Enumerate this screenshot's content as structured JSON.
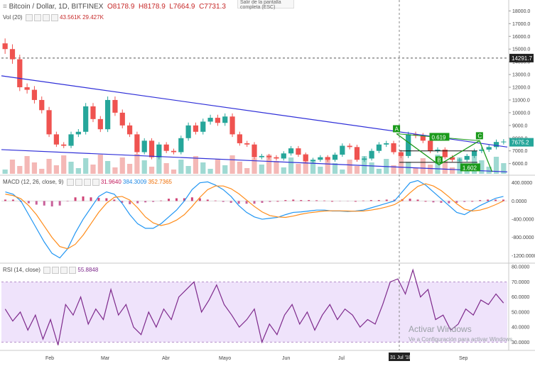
{
  "header": {
    "symbol": "Bitcoin / Dollar, 1D, BITFINEX",
    "o_label": "O",
    "o_value": "8178.9",
    "h_label": "H",
    "h_value": "8178.9",
    "l_label": "L",
    "l_value": "7664.9",
    "c_label": "C",
    "c_value": "7731.3",
    "vol_label": "Vol (20)",
    "vol_value": "43.561K",
    "vol_value2": "29.427K",
    "macd_label": "MACD (12, 26, close, 9)",
    "macd_v1": "31.9640",
    "macd_v2": "384.3009",
    "macd_v3": "352.7365",
    "rsi_label": "RSI (14, close)",
    "rsi_value": "55.8848"
  },
  "tooltip": {
    "line1": "Salir de la pantalla",
    "line2": "completa (ESC)"
  },
  "watermark": {
    "title": "Activar Windows",
    "subtitle": "Ve a Configuración para activar Windows."
  },
  "colors": {
    "up": "#26a69a",
    "down": "#ef5350",
    "trend": "#2f2fd8",
    "pattern": "#1a9a1a",
    "macd": "#2196f3",
    "signal": "#ff8c1a",
    "rsi": "#7e2a8c",
    "rsi_band": "#efe3fb"
  },
  "chart_data": [
    {
      "type": "candlestick",
      "panel": "price",
      "x": [
        "Feb",
        "Mar",
        "Abr",
        "Mayo",
        "Jun",
        "Jul",
        "31 Jul '18",
        "Sep"
      ],
      "close_series": [
        15000,
        14200,
        12000,
        11800,
        11000,
        10200,
        8300,
        7500,
        7400,
        8300,
        8500,
        10500,
        9500,
        8700,
        11000,
        10000,
        9000,
        8300,
        6900,
        7800,
        6500,
        7500,
        7000,
        6900,
        8000,
        9000,
        8500,
        9300,
        9600,
        9200,
        9700,
        8300,
        7600,
        7500,
        6500,
        6600,
        6500,
        6400,
        6800,
        7200,
        6700,
        6200,
        6300,
        6500,
        6300,
        6700,
        7400,
        7300,
        6300,
        6400,
        7000,
        7500,
        7600,
        6900,
        6600,
        8300,
        8200,
        7800,
        7000,
        7100,
        6500,
        6300,
        6300,
        6600,
        7000,
        7100,
        7300,
        7700,
        7731
      ],
      "ylim": [
        5200,
        18300
      ],
      "yticks": [
        6000,
        7000,
        8000,
        9000,
        10000,
        11000,
        12000,
        13000,
        14000,
        15000,
        16000,
        17000,
        18000
      ],
      "price_labels": [
        {
          "label": "14291.7",
          "value": 14291.7
        },
        {
          "label": "7675.2",
          "value": 7675.2
        }
      ],
      "pattern": {
        "points": [
          {
            "name": "A",
            "x": 0.781,
            "y": 8350
          },
          {
            "name": "B",
            "x": 0.865,
            "y": 5900
          },
          {
            "name": "C",
            "x": 0.945,
            "y": 7800
          }
        ],
        "ratios": [
          {
            "label": "0.619",
            "value": 0.619
          },
          {
            "label": "1.602",
            "value": 1.602
          }
        ]
      }
    },
    {
      "type": "bar",
      "panel": "volume",
      "label": "Vol (20)",
      "values": [
        43561,
        29427
      ]
    },
    {
      "type": "line",
      "panel": "macd",
      "title": "MACD (12, 26, close, 9)",
      "yticks": [
        400,
        0,
        -400,
        -800,
        -1200
      ],
      "ylim": [
        -1350,
        520
      ],
      "series": [
        {
          "name": "MACD",
          "values": [
            200,
            150,
            0,
            -300,
            -600,
            -900,
            -1150,
            -1250,
            -1050,
            -700,
            -400,
            -150,
            100,
            200,
            150,
            -50,
            -300,
            -500,
            -600,
            -600,
            -500,
            -350,
            -200,
            0,
            250,
            400,
            420,
            350,
            250,
            100,
            -100,
            -250,
            -350,
            -400,
            -380,
            -360,
            -300,
            -250,
            -240,
            -220,
            -200,
            -200,
            -220,
            -220,
            -230,
            -220,
            -200,
            -150,
            -100,
            -50,
            0,
            200,
            400,
            450,
            350,
            200,
            50,
            -100,
            -250,
            -300,
            -200,
            -100,
            -20,
            60,
            100
          ]
        },
        {
          "name": "Signal",
          "values": [
            150,
            120,
            50,
            -100,
            -300,
            -550,
            -800,
            -1000,
            -1050,
            -950,
            -750,
            -500,
            -250,
            -50,
            80,
            100,
            20,
            -150,
            -350,
            -480,
            -540,
            -500,
            -420,
            -300,
            -120,
            80,
            250,
            330,
            330,
            270,
            160,
            20,
            -120,
            -240,
            -320,
            -350,
            -360,
            -330,
            -290,
            -260,
            -240,
            -220,
            -215,
            -215,
            -220,
            -225,
            -220,
            -200,
            -170,
            -130,
            -80,
            20,
            180,
            320,
            380,
            330,
            230,
            90,
            -60,
            -180,
            -220,
            -200,
            -150,
            -80,
            0
          ]
        },
        {
          "name": "Histogram",
          "values": [
            30,
            30,
            -20,
            -50,
            -80,
            -100,
            -120,
            -100,
            -10,
            80,
            100,
            80,
            70,
            60,
            30,
            -40,
            -70,
            -50,
            -30,
            -20,
            10,
            50,
            60,
            60,
            80,
            60,
            30,
            10,
            -20,
            -40,
            -60,
            -60,
            -60,
            -40,
            -20,
            0,
            20,
            30,
            20,
            20,
            15,
            10,
            0,
            -5,
            -5,
            0,
            10,
            20,
            20,
            30,
            30,
            40,
            50,
            30,
            0,
            -30,
            -40,
            -50,
            -40,
            -20,
            0,
            20,
            30,
            30,
            30
          ]
        }
      ]
    },
    {
      "type": "line",
      "panel": "rsi",
      "title": "RSI (14, close)",
      "yticks": [
        80,
        70,
        60,
        50,
        40,
        30
      ],
      "ylim": [
        25,
        82
      ],
      "band": [
        30,
        70
      ],
      "series": [
        {
          "name": "RSI",
          "values": [
            52,
            44,
            50,
            38,
            48,
            32,
            45,
            28,
            55,
            48,
            60,
            42,
            52,
            45,
            65,
            48,
            55,
            40,
            35,
            50,
            40,
            52,
            45,
            60,
            65,
            70,
            50,
            58,
            68,
            55,
            48,
            40,
            45,
            52,
            30,
            42,
            35,
            48,
            55,
            42,
            50,
            38,
            48,
            55,
            45,
            52,
            48,
            40,
            45,
            42,
            55,
            70,
            72,
            62,
            78,
            60,
            65,
            45,
            48,
            38,
            42,
            52,
            48,
            58,
            55,
            62,
            56
          ]
        }
      ]
    }
  ],
  "axis": {
    "x_labels": [
      "Feb",
      "Mar",
      "Abr",
      "Mayo",
      "Jun",
      "Jul",
      "31 Jul '18",
      "Sep"
    ],
    "price_ticks": [
      "6000.0",
      "7000.0",
      "8000.0",
      "9000.0",
      "10000.0",
      "11000.0",
      "12000.0",
      "13000.0",
      "14000.0",
      "15000.0",
      "16000.0",
      "17000.0",
      "18000.0"
    ],
    "macd_ticks": [
      "400.0000",
      "0.0000",
      "-400.0000",
      "-800.0000",
      "-1200.0000"
    ],
    "rsi_ticks": [
      "80.0000",
      "70.0000",
      "60.0000",
      "50.0000",
      "40.0000",
      "30.0000"
    ]
  }
}
